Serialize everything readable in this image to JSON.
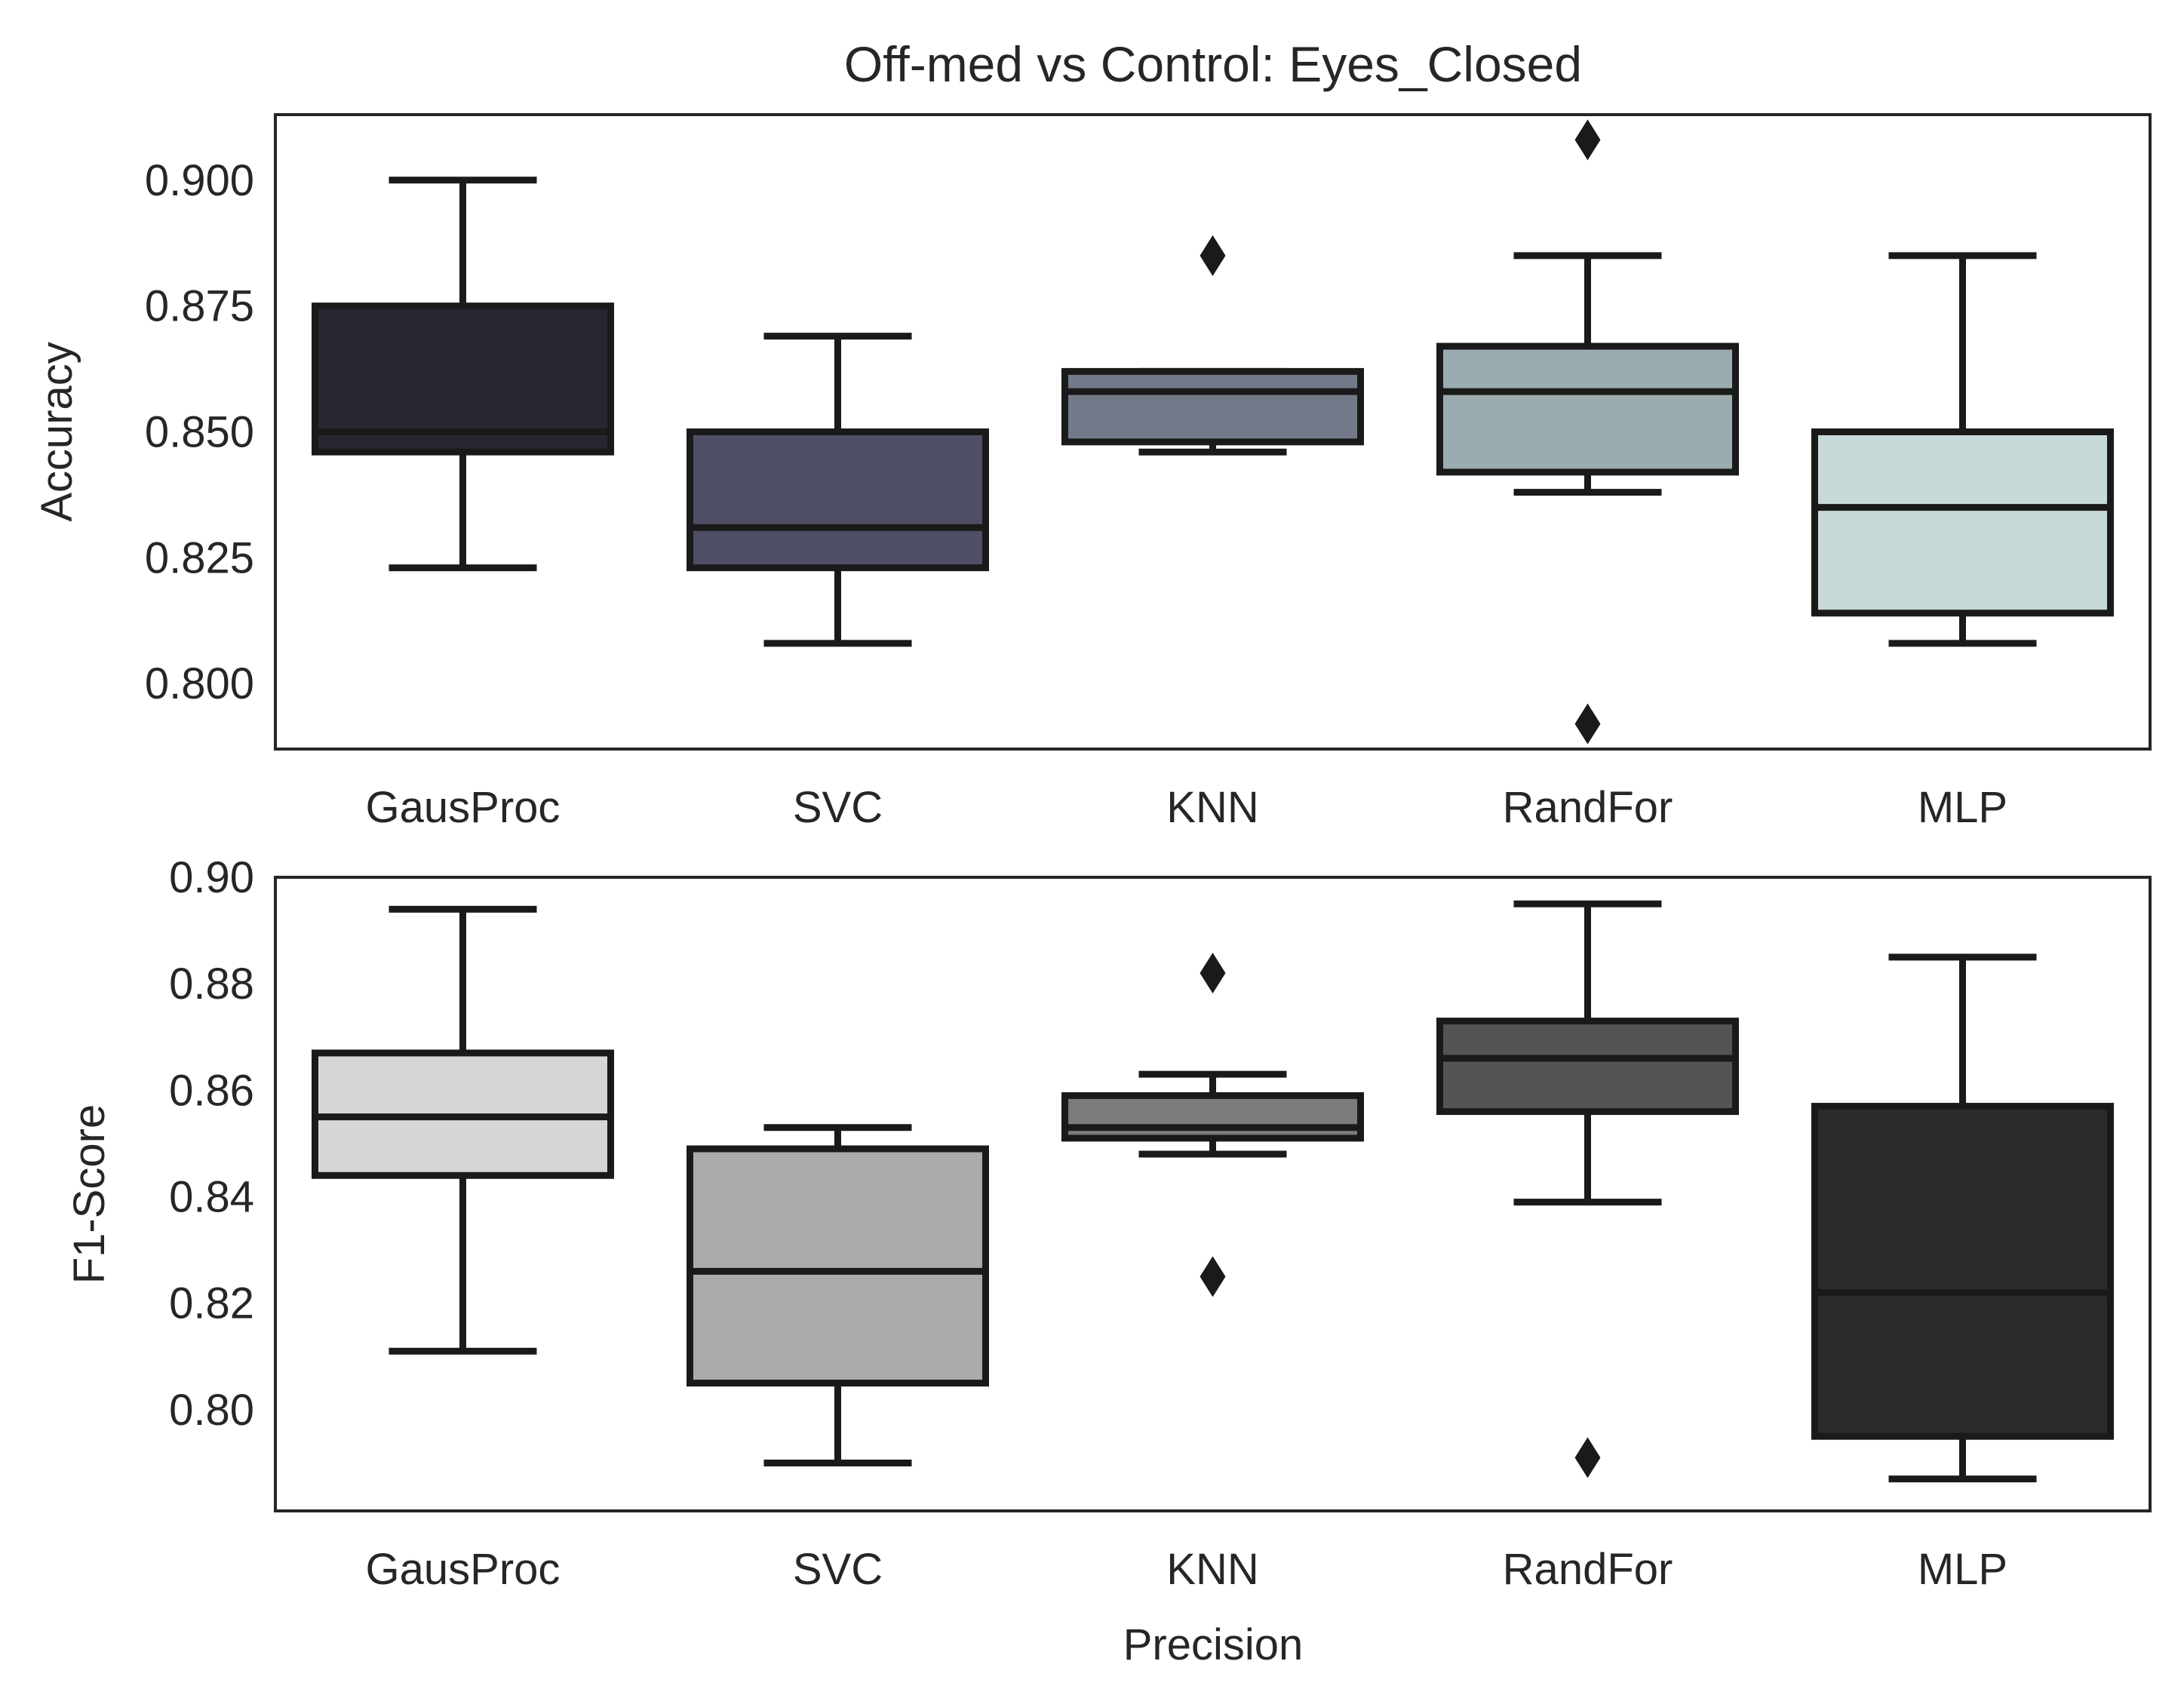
{
  "chart_data": [
    {
      "type": "box",
      "title": "Off-med vs Control: Eyes_Closed",
      "xlabel": "",
      "ylabel": "Accuracy",
      "ylim": [
        0.787,
        0.913
      ],
      "yticks": [
        0.8,
        0.825,
        0.85,
        0.875,
        0.9
      ],
      "ytick_labels": [
        "0.800",
        "0.825",
        "0.850",
        "0.875",
        "0.900"
      ],
      "categories": [
        "GausProc",
        "SVC",
        "KNN",
        "RandFor",
        "MLP"
      ],
      "colors": [
        "#262730",
        "#4e4f64",
        "#727a8a",
        "#9bacb1",
        "#c8d9d9"
      ],
      "boxes": [
        {
          "category": "GausProc",
          "whislo": 0.823,
          "q1": 0.846,
          "median": 0.85,
          "q3": 0.875,
          "whishi": 0.9,
          "fliers": []
        },
        {
          "category": "SVC",
          "whislo": 0.808,
          "q1": 0.823,
          "median": 0.831,
          "q3": 0.85,
          "whishi": 0.869,
          "fliers": []
        },
        {
          "category": "KNN",
          "whislo": 0.846,
          "q1": 0.848,
          "median": 0.858,
          "q3": 0.862,
          "whishi": 0.862,
          "fliers": [
            0.885
          ]
        },
        {
          "category": "RandFor",
          "whislo": 0.838,
          "q1": 0.842,
          "median": 0.858,
          "q3": 0.867,
          "whishi": 0.885,
          "fliers": [
            0.908,
            0.792
          ]
        },
        {
          "category": "MLP",
          "whislo": 0.808,
          "q1": 0.814,
          "median": 0.835,
          "q3": 0.85,
          "whishi": 0.885,
          "fliers": []
        }
      ]
    },
    {
      "type": "box",
      "title": "",
      "xlabel": "Precision",
      "ylabel": "F1-Score",
      "ylim": [
        0.781,
        0.9
      ],
      "yticks": [
        0.8,
        0.82,
        0.84,
        0.86,
        0.88,
        0.9
      ],
      "ytick_labels": [
        "0.80",
        "0.82",
        "0.84",
        "0.86",
        "0.88",
        "0.90"
      ],
      "categories": [
        "GausProc",
        "SVC",
        "KNN",
        "RandFor",
        "MLP"
      ],
      "colors": [
        "#d6d6d6",
        "#aaaaaa",
        "#7c7c7c",
        "#545454",
        "#2b2b2b"
      ],
      "boxes": [
        {
          "category": "GausProc",
          "whislo": 0.811,
          "q1": 0.844,
          "median": 0.855,
          "q3": 0.867,
          "whishi": 0.894,
          "fliers": []
        },
        {
          "category": "SVC",
          "whislo": 0.79,
          "q1": 0.805,
          "median": 0.826,
          "q3": 0.849,
          "whishi": 0.853,
          "fliers": []
        },
        {
          "category": "KNN",
          "whislo": 0.848,
          "q1": 0.851,
          "median": 0.853,
          "q3": 0.859,
          "whishi": 0.863,
          "fliers": [
            0.882,
            0.825
          ]
        },
        {
          "category": "RandFor",
          "whislo": 0.839,
          "q1": 0.856,
          "median": 0.866,
          "q3": 0.873,
          "whishi": 0.895,
          "fliers": [
            0.791
          ]
        },
        {
          "category": "MLP",
          "whislo": 0.787,
          "q1": 0.795,
          "median": 0.822,
          "q3": 0.857,
          "whishi": 0.885,
          "fliers": []
        }
      ]
    }
  ]
}
